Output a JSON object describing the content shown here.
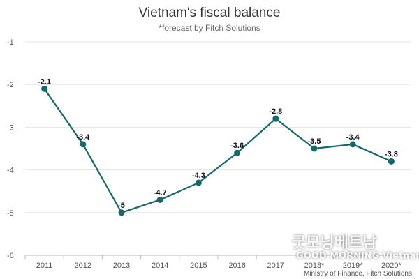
{
  "chart_data": {
    "type": "line",
    "title": "Vietnam's fiscal balance",
    "subtitle": "*forecast by Fitch Solutions",
    "categories": [
      "2011",
      "2012",
      "2013",
      "2014",
      "2015",
      "2016",
      "2017",
      "2018*",
      "2019*",
      "2020*"
    ],
    "series": [
      {
        "values": [
          -2.1,
          -3.4,
          -5,
          -4.7,
          -4.3,
          -3.6,
          -2.8,
          -3.5,
          -3.4,
          -3.8
        ]
      }
    ],
    "data_labels": [
      "-2.1",
      "-3.4",
      "-5",
      "-4.7",
      "-4.3",
      "-3.6",
      "-2.8",
      "-3.5",
      "-3.4",
      "-3.8"
    ],
    "ylim": [
      -6,
      -1
    ],
    "yticks": [
      -1,
      -2,
      -3,
      -4,
      -5,
      -6
    ],
    "grid": true,
    "line_color": "#16696a",
    "source": "Ministry of Finance, Fitch Solutions"
  },
  "watermark": {
    "korean_text": "굿모닝베트남",
    "english_text": "GOOD MORNING Vietnam"
  }
}
